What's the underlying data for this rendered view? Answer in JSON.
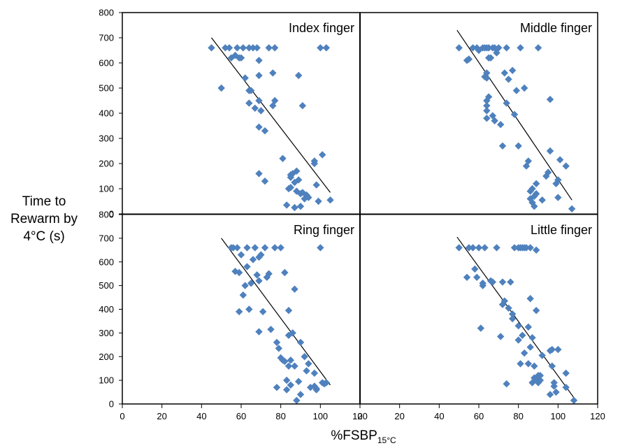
{
  "chart_data": {
    "type": "scatter",
    "ylabel_lines": [
      "Time to",
      "Rewarm by",
      "4°C (s)"
    ],
    "xlabel_main": "%FSBP",
    "xlabel_sub": "15°C",
    "xlim": [
      0,
      120
    ],
    "ylim": [
      0,
      800
    ],
    "x_ticks": [
      0,
      20,
      40,
      60,
      80,
      100,
      120
    ],
    "y_ticks": [
      0,
      100,
      200,
      300,
      400,
      500,
      600,
      700,
      800
    ],
    "marker_color": "#4f81bd",
    "line_color": "#000000",
    "panels": [
      {
        "title": "Index finger",
        "trendline": [
          [
            45,
            700
          ],
          [
            105,
            85
          ]
        ],
        "points": [
          [
            45,
            660
          ],
          [
            52,
            660
          ],
          [
            54,
            660
          ],
          [
            55,
            620
          ],
          [
            57,
            630
          ],
          [
            58,
            660
          ],
          [
            59,
            620
          ],
          [
            60,
            620
          ],
          [
            61,
            660
          ],
          [
            62,
            540
          ],
          [
            64,
            660
          ],
          [
            64,
            440
          ],
          [
            64,
            490
          ],
          [
            65,
            490
          ],
          [
            66,
            660
          ],
          [
            67,
            420
          ],
          [
            68,
            660
          ],
          [
            69,
            610
          ],
          [
            69,
            550
          ],
          [
            69,
            450
          ],
          [
            69,
            160
          ],
          [
            69,
            345
          ],
          [
            70,
            410
          ],
          [
            72,
            130
          ],
          [
            72,
            330
          ],
          [
            74,
            660
          ],
          [
            76,
            560
          ],
          [
            76,
            430
          ],
          [
            77,
            450
          ],
          [
            77,
            660
          ],
          [
            81,
            220
          ],
          [
            83,
            35
          ],
          [
            84,
            100
          ],
          [
            85,
            145
          ],
          [
            85,
            105
          ],
          [
            85,
            155
          ],
          [
            86,
            160
          ],
          [
            87,
            25
          ],
          [
            87,
            125
          ],
          [
            88,
            170
          ],
          [
            88,
            90
          ],
          [
            89,
            550
          ],
          [
            89,
            135
          ],
          [
            90,
            80
          ],
          [
            90,
            30
          ],
          [
            91,
            430
          ],
          [
            91,
            85
          ],
          [
            92,
            60
          ],
          [
            93,
            75
          ],
          [
            94,
            65
          ],
          [
            97,
            200
          ],
          [
            97,
            210
          ],
          [
            98,
            115
          ],
          [
            99,
            50
          ],
          [
            100,
            660
          ],
          [
            101,
            235
          ],
          [
            103,
            660
          ],
          [
            105,
            55
          ],
          [
            50,
            500
          ]
        ]
      },
      {
        "title": "Middle finger",
        "trendline": [
          [
            49,
            730
          ],
          [
            107,
            55
          ]
        ],
        "points": [
          [
            50,
            660
          ],
          [
            54,
            610
          ],
          [
            55,
            615
          ],
          [
            57,
            660
          ],
          [
            59,
            660
          ],
          [
            60,
            650
          ],
          [
            62,
            660
          ],
          [
            63,
            660
          ],
          [
            63,
            545
          ],
          [
            64,
            660
          ],
          [
            64,
            560
          ],
          [
            64,
            540
          ],
          [
            64,
            450
          ],
          [
            64,
            430
          ],
          [
            64,
            410
          ],
          [
            64,
            380
          ],
          [
            65,
            660
          ],
          [
            65,
            620
          ],
          [
            65,
            465
          ],
          [
            66,
            620
          ],
          [
            67,
            660
          ],
          [
            67,
            390
          ],
          [
            68,
            370
          ],
          [
            68,
            660
          ],
          [
            69,
            640
          ],
          [
            70,
            660
          ],
          [
            71,
            355
          ],
          [
            72,
            270
          ],
          [
            73,
            560
          ],
          [
            74,
            660
          ],
          [
            74,
            440
          ],
          [
            75,
            535
          ],
          [
            77,
            570
          ],
          [
            78,
            395
          ],
          [
            79,
            490
          ],
          [
            80,
            270
          ],
          [
            81,
            660
          ],
          [
            83,
            500
          ],
          [
            84,
            190
          ],
          [
            85,
            210
          ],
          [
            86,
            90
          ],
          [
            86,
            60
          ],
          [
            87,
            45
          ],
          [
            87,
            100
          ],
          [
            88,
            30
          ],
          [
            88,
            70
          ],
          [
            89,
            120
          ],
          [
            89,
            80
          ],
          [
            90,
            660
          ],
          [
            92,
            55
          ],
          [
            94,
            150
          ],
          [
            95,
            165
          ],
          [
            96,
            455
          ],
          [
            96,
            250
          ],
          [
            99,
            120
          ],
          [
            100,
            135
          ],
          [
            100,
            65
          ],
          [
            101,
            215
          ],
          [
            104,
            190
          ],
          [
            107,
            20
          ]
        ]
      },
      {
        "title": "Ring finger",
        "trendline": [
          [
            50,
            700
          ],
          [
            105,
            80
          ]
        ],
        "points": [
          [
            56,
            660
          ],
          [
            57,
            560
          ],
          [
            58,
            660
          ],
          [
            59,
            390
          ],
          [
            59,
            555
          ],
          [
            60,
            630
          ],
          [
            61,
            460
          ],
          [
            62,
            500
          ],
          [
            63,
            660
          ],
          [
            63,
            580
          ],
          [
            64,
            400
          ],
          [
            65,
            510
          ],
          [
            66,
            610
          ],
          [
            67,
            660
          ],
          [
            68,
            545
          ],
          [
            69,
            620
          ],
          [
            69,
            305
          ],
          [
            69,
            520
          ],
          [
            70,
            630
          ],
          [
            71,
            390
          ],
          [
            72,
            660
          ],
          [
            73,
            535
          ],
          [
            74,
            550
          ],
          [
            75,
            315
          ],
          [
            77,
            660
          ],
          [
            78,
            70
          ],
          [
            78,
            260
          ],
          [
            79,
            235
          ],
          [
            80,
            195
          ],
          [
            80,
            660
          ],
          [
            81,
            185
          ],
          [
            82,
            555
          ],
          [
            82,
            180
          ],
          [
            83,
            60
          ],
          [
            83,
            100
          ],
          [
            84,
            160
          ],
          [
            84,
            395
          ],
          [
            84,
            290
          ],
          [
            85,
            185
          ],
          [
            85,
            80
          ],
          [
            86,
            300
          ],
          [
            87,
            485
          ],
          [
            87,
            160
          ],
          [
            88,
            15
          ],
          [
            89,
            95
          ],
          [
            90,
            40
          ],
          [
            92,
            200
          ],
          [
            93,
            140
          ],
          [
            94,
            170
          ],
          [
            95,
            70
          ],
          [
            97,
            130
          ],
          [
            97,
            75
          ],
          [
            98,
            60
          ],
          [
            98,
            65
          ],
          [
            100,
            660
          ],
          [
            101,
            90
          ],
          [
            102,
            85
          ],
          [
            103,
            90
          ],
          [
            90,
            260
          ],
          [
            55,
            660
          ]
        ]
      },
      {
        "title": "Little finger",
        "trendline": [
          [
            49,
            705
          ],
          [
            109,
            15
          ]
        ],
        "points": [
          [
            50,
            660
          ],
          [
            54,
            535
          ],
          [
            55,
            660
          ],
          [
            57,
            660
          ],
          [
            58,
            570
          ],
          [
            59,
            535
          ],
          [
            60,
            660
          ],
          [
            61,
            320
          ],
          [
            62,
            510
          ],
          [
            62,
            500
          ],
          [
            63,
            660
          ],
          [
            66,
            520
          ],
          [
            67,
            515
          ],
          [
            69,
            660
          ],
          [
            71,
            285
          ],
          [
            72,
            420
          ],
          [
            72,
            515
          ],
          [
            73,
            435
          ],
          [
            74,
            85
          ],
          [
            75,
            405
          ],
          [
            76,
            515
          ],
          [
            77,
            380
          ],
          [
            77,
            360
          ],
          [
            78,
            660
          ],
          [
            80,
            660
          ],
          [
            80,
            330
          ],
          [
            80,
            270
          ],
          [
            81,
            660
          ],
          [
            81,
            170
          ],
          [
            82,
            290
          ],
          [
            82,
            660
          ],
          [
            83,
            660
          ],
          [
            83,
            215
          ],
          [
            84,
            660
          ],
          [
            85,
            170
          ],
          [
            85,
            325
          ],
          [
            86,
            445
          ],
          [
            86,
            660
          ],
          [
            86,
            240
          ],
          [
            87,
            90
          ],
          [
            87,
            280
          ],
          [
            88,
            160
          ],
          [
            88,
            110
          ],
          [
            89,
            395
          ],
          [
            89,
            100
          ],
          [
            89,
            650
          ],
          [
            90,
            90
          ],
          [
            90,
            120
          ],
          [
            91,
            120
          ],
          [
            91,
            100
          ],
          [
            92,
            205
          ],
          [
            96,
            40
          ],
          [
            96,
            225
          ],
          [
            97,
            230
          ],
          [
            97,
            160
          ],
          [
            98,
            90
          ],
          [
            98,
            75
          ],
          [
            99,
            50
          ],
          [
            100,
            230
          ],
          [
            104,
            130
          ],
          [
            104,
            70
          ],
          [
            108,
            15
          ]
        ]
      }
    ]
  }
}
